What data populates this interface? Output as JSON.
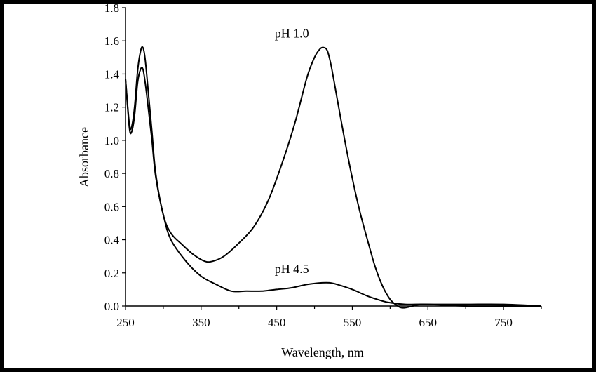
{
  "chart_data": {
    "type": "line",
    "title": "",
    "xlabel": "Wavelength, nm",
    "ylabel": "Absorbance",
    "xlim": [
      250,
      800
    ],
    "ylim": [
      0,
      1.8
    ],
    "xticks": [
      250,
      350,
      450,
      550,
      650,
      750
    ],
    "xtick_labels": [
      "250",
      "350",
      "450",
      "550",
      "650",
      "750"
    ],
    "yticks": [
      0,
      0.2,
      0.4,
      0.6,
      0.8,
      1.0,
      1.2,
      1.4,
      1.6,
      1.8
    ],
    "ytick_labels": [
      "0.0",
      "0.2",
      "0.4",
      "0.6",
      "0.8",
      "1.0",
      "1.2",
      "1.4",
      "1.6",
      "1.8"
    ],
    "grid": false,
    "series": [
      {
        "name": "pH 1.0",
        "x": [
          250,
          255,
          258,
          262,
          266,
          270,
          273,
          276,
          280,
          285,
          290,
          300,
          310,
          325,
          340,
          355,
          365,
          380,
          400,
          420,
          440,
          460,
          475,
          490,
          500,
          507,
          512,
          517,
          522,
          530,
          540,
          550,
          560,
          570,
          580,
          590,
          600,
          610,
          615,
          620,
          630,
          640,
          650,
          700,
          750,
          800
        ],
        "y": [
          1.37,
          1.1,
          1.08,
          1.2,
          1.42,
          1.54,
          1.56,
          1.49,
          1.3,
          1.05,
          0.8,
          0.55,
          0.44,
          0.37,
          0.31,
          0.27,
          0.27,
          0.3,
          0.38,
          0.48,
          0.65,
          0.9,
          1.12,
          1.38,
          1.5,
          1.55,
          1.56,
          1.54,
          1.45,
          1.25,
          1.0,
          0.77,
          0.57,
          0.4,
          0.24,
          0.12,
          0.04,
          0.0,
          -0.01,
          -0.01,
          0.0,
          0.01,
          0.01,
          0.01,
          0.01,
          0.0
        ]
      },
      {
        "name": "pH 4.5",
        "x": [
          250,
          255,
          258,
          262,
          266,
          270,
          273,
          276,
          280,
          285,
          290,
          300,
          310,
          330,
          350,
          370,
          390,
          410,
          430,
          450,
          470,
          490,
          510,
          520,
          530,
          550,
          570,
          590,
          600,
          620,
          650,
          700,
          750,
          800
        ],
        "y": [
          1.37,
          1.08,
          1.05,
          1.15,
          1.35,
          1.43,
          1.43,
          1.35,
          1.2,
          1.0,
          0.78,
          0.55,
          0.4,
          0.27,
          0.18,
          0.13,
          0.09,
          0.09,
          0.09,
          0.1,
          0.11,
          0.13,
          0.14,
          0.14,
          0.13,
          0.1,
          0.06,
          0.03,
          0.02,
          0.01,
          0.01,
          0.0,
          0.0,
          0.0
        ]
      }
    ],
    "annotations": [
      {
        "text": "pH 1.0",
        "x": 470,
        "y": 1.62
      },
      {
        "text": "pH 4.5",
        "x": 470,
        "y": 0.2
      }
    ]
  }
}
